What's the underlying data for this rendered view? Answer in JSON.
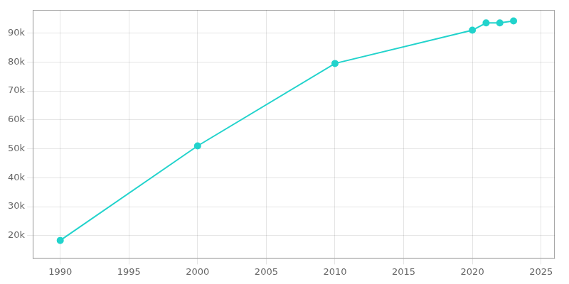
{
  "chart_data": {
    "type": "line",
    "x": [
      1990,
      2000,
      2010,
      2020,
      2021,
      2022,
      2023
    ],
    "values": [
      18325,
      51000,
      79500,
      91000,
      93500,
      93500,
      94200
    ],
    "color": "#22d3cc",
    "marker": "circle",
    "xlim": [
      1988,
      2026
    ],
    "xticks": [
      1990,
      1995,
      2000,
      2005,
      2010,
      2015,
      2020,
      2025
    ],
    "ylim": [
      12000,
      98000
    ],
    "yticks": [
      {
        "value": 20000,
        "label": "20k"
      },
      {
        "value": 30000,
        "label": "30k"
      },
      {
        "value": 40000,
        "label": "40k"
      },
      {
        "value": 50000,
        "label": "50k"
      },
      {
        "value": 60000,
        "label": "60k"
      },
      {
        "value": 70000,
        "label": "70k"
      },
      {
        "value": 80000,
        "label": "80k"
      },
      {
        "value": 90000,
        "label": "90k"
      }
    ],
    "grid": true
  }
}
